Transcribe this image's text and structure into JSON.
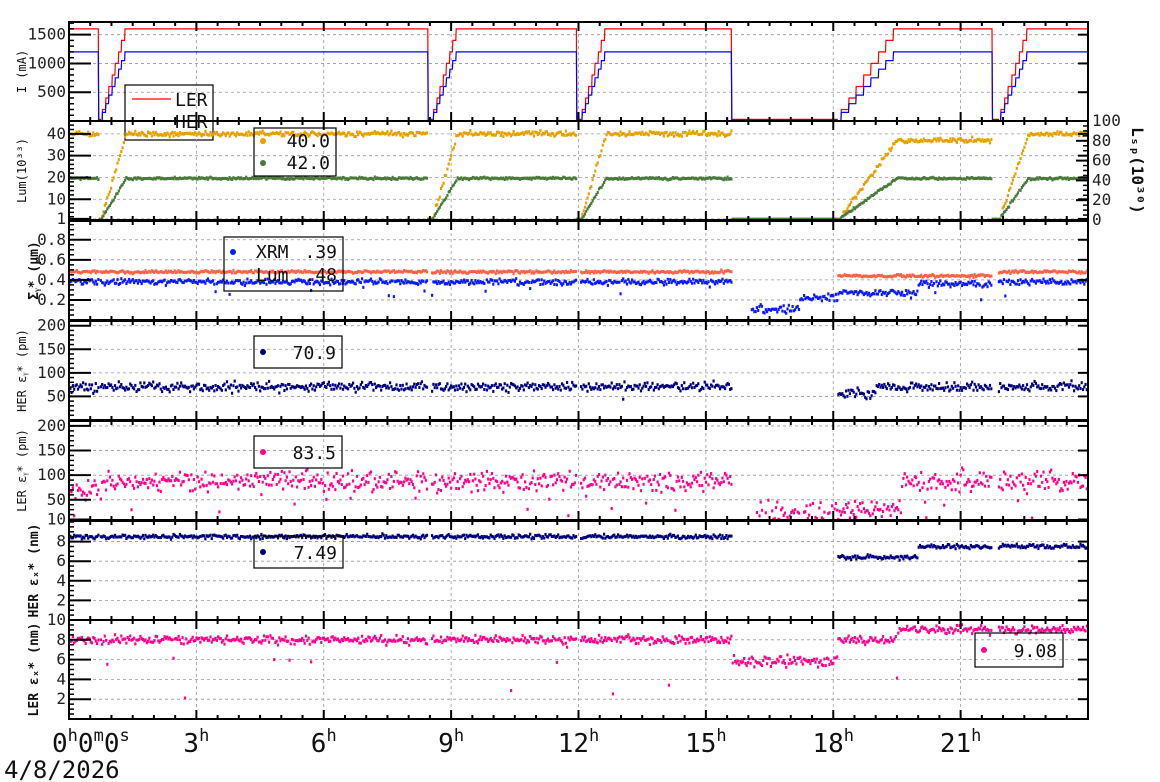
{
  "chart_data": {
    "type": "scatter",
    "title": "",
    "x_unit": "hours",
    "x_range": [
      0,
      24
    ],
    "x_ticks": [
      0,
      3,
      6,
      9,
      12,
      15,
      18,
      21
    ],
    "x_tick_labels": [
      "0h0m0s",
      "3h",
      "6h",
      "9h",
      "12h",
      "15h",
      "18h",
      "21h"
    ],
    "date_label": "4/8/2026",
    "grid": true,
    "beam_runs": [
      {
        "start": 0,
        "end": 0.7,
        "ramp": 0
      },
      {
        "start": 0.75,
        "end": 8.45,
        "ramp": 0.6
      },
      {
        "start": 8.55,
        "end": 11.95,
        "ramp": 0.6
      },
      {
        "start": 12.05,
        "end": 15.6,
        "ramp": 0.6
      },
      {
        "start": 18.1,
        "end": 21.75,
        "ramp": 1.4
      },
      {
        "start": 21.9,
        "end": 24,
        "ramp": 0.7
      }
    ],
    "panels": [
      {
        "ylabel": "I (mA)",
        "ylim": [
          0,
          1720
        ],
        "ticks": [
          500,
          1000,
          1500
        ],
        "tick_labels": [
          "500",
          "1000",
          "1500"
        ],
        "minor": 100,
        "legend": {
          "position": "upper-left",
          "entries": [
            {
              "label": "LER"
            },
            {
              "label": "HER"
            }
          ]
        },
        "series": [
          {
            "name": "LER",
            "kind": "line",
            "color": "#ff0000",
            "level": 1600,
            "noise": 0,
            "scale_with_fill": true,
            "off_value": 30
          },
          {
            "name": "HER",
            "kind": "line",
            "color": "#0000ff",
            "level": 1200,
            "noise": 0,
            "scale_with_fill": true,
            "off_value": 15
          }
        ]
      },
      {
        "ylabel": "Lum(10³³)",
        "ylim": [
          0.5,
          45.9
        ],
        "ticks": [
          1,
          10,
          20,
          30,
          40
        ],
        "tick_labels": [
          "1",
          "10",
          "20",
          "30",
          "40"
        ],
        "minor": 2,
        "right_axis": {
          "label": "Lₛₚ(10³⁰)",
          "ylim": [
            0,
            100
          ],
          "ticks": [
            0,
            20,
            40,
            60,
            80,
            100
          ],
          "tick_labels": [
            "0",
            "20",
            "40",
            "60",
            "80",
            "100"
          ]
        },
        "legend": {
          "position": "upper-center",
          "entries": [
            {
              "label": "40.0"
            },
            {
              "label": "42.0"
            }
          ]
        },
        "series": [
          {
            "name": "Lum",
            "kind": "scatter",
            "color": "#e8a000",
            "level": 40,
            "noise": 0.8,
            "scale_with_fill": true,
            "off_value": 1,
            "overrides": [
              {
                "from": 18.1,
                "to": 21.75,
                "level": 37
              }
            ]
          },
          {
            "name": "Lsp",
            "kind": "scatter",
            "color": "#4a7a3a",
            "level": 42,
            "noise": 0.8,
            "scale_with_fill": true,
            "off_value": 0.5,
            "right_axis": true
          }
        ]
      },
      {
        "ylabel": "Σᵧ* (μm)",
        "ylim": [
          0,
          0.987
        ],
        "ticks": [
          0.2,
          0.4,
          0.6,
          0.8
        ],
        "tick_labels": [
          "0.2",
          "0.4",
          "0.6",
          "0.8"
        ],
        "minor": 0.05,
        "legend": {
          "position": "upper-center",
          "entries": [
            {
              "label": "XRM",
              "value": ".39"
            },
            {
              "label": "Lum",
              "value": ".48"
            }
          ]
        },
        "series": [
          {
            "name": "Lum",
            "kind": "scatter",
            "color": "#ff6347",
            "level": 0.48,
            "noise": 0.01,
            "overrides": [
              {
                "from": 18.1,
                "to": 21.75,
                "level": 0.44
              }
            ]
          },
          {
            "name": "XRM",
            "kind": "scatter",
            "color": "#0a1aff",
            "level": 0.38,
            "noise": 0.02,
            "outlier_rate": 0.03,
            "outlier_low": 0.2,
            "overrides": [
              {
                "from": 18.1,
                "to": 20,
                "level": 0.27
              },
              {
                "from": 20,
                "to": 21.75,
                "level": 0.36
              }
            ],
            "off_segments": [
              {
                "from": 16.05,
                "to": 17.2,
                "level": 0.1
              },
              {
                "from": 17.2,
                "to": 18.1,
                "level": 0.22
              }
            ]
          }
        ]
      },
      {
        "ylabel": "HER εᵧ* (pm)",
        "ylim": [
          0,
          210
        ],
        "ticks": [
          50,
          100,
          150,
          200
        ],
        "tick_labels": [
          "50",
          "100",
          "150",
          "200"
        ],
        "minor": 10,
        "legend": {
          "position": "upper-center",
          "entries": [
            {
              "value": "70.9"
            }
          ]
        },
        "series": [
          {
            "name": "HER",
            "kind": "scatter",
            "color": "#000080",
            "level": 70,
            "noise": 7,
            "outlier_rate": 0.01,
            "outlier_low": 40,
            "overrides": [
              {
                "from": 18.1,
                "to": 19,
                "level": 58
              }
            ]
          }
        ]
      },
      {
        "ylabel": "LER εᵧ* (pm)",
        "ylim": [
          9,
          210
        ],
        "ticks": [
          10,
          50,
          100,
          150,
          200
        ],
        "tick_labels": [
          "10",
          "50",
          "100",
          "150",
          "200"
        ],
        "minor": 10,
        "legend": {
          "position": "upper-center",
          "entries": [
            {
              "value": "83.5"
            }
          ]
        },
        "series": [
          {
            "name": "LER",
            "kind": "scatter",
            "color": "#ff0090",
            "level": 88,
            "noise": 14,
            "outlier_rate": 0.05,
            "outlier_low": 12,
            "overrides": [
              {
                "from": 0,
                "to": 0.7,
                "level": 72
              },
              {
                "from": 18.1,
                "to": 19.6,
                "level": 30
              }
            ],
            "off_segments": [
              {
                "from": 16.05,
                "to": 18.1,
                "level": 16
              }
            ]
          }
        ]
      },
      {
        "ylabel": "HER εₓ* (nm)",
        "ylim": [
          0,
          10.1
        ],
        "ticks": [
          2,
          4,
          6,
          8
        ],
        "tick_labels": [
          "2",
          "4",
          "6",
          "8"
        ],
        "minor": 0.5,
        "legend": {
          "position": "upper-center",
          "entries": [
            {
              "value": "7.49"
            }
          ]
        },
        "series": [
          {
            "name": "HER",
            "kind": "scatter",
            "color": "#000080",
            "level": 8.5,
            "noise": 0.15,
            "overrides": [
              {
                "from": 15.6,
                "to": 16.05,
                "level": 7.6
              },
              {
                "from": 18.1,
                "to": 20,
                "level": 6.4
              },
              {
                "from": 20,
                "to": 21.75,
                "level": 7.5
              },
              {
                "from": 21.9,
                "to": 24,
                "level": 7.5
              }
            ]
          }
        ]
      },
      {
        "ylabel": "LER εₓ* (nm)",
        "ylim": [
          0,
          10
        ],
        "ticks": [
          2,
          4,
          6,
          8,
          10
        ],
        "tick_labels": [
          "2",
          "4",
          "6",
          "8",
          "10"
        ],
        "minor": 0.5,
        "legend": {
          "position": "right",
          "entries": [
            {
              "value": "9.08"
            }
          ]
        },
        "series": [
          {
            "name": "LER",
            "kind": "scatter",
            "color": "#ff0090",
            "level": 8,
            "noise": 0.3,
            "outlier_rate": 0.02,
            "outlier_low": 2,
            "overrides": [
              {
                "from": 19.5,
                "to": 24,
                "level": 9.0
              }
            ],
            "off_segments": [
              {
                "from": 15.6,
                "to": 18.1,
                "level": 5.8
              }
            ]
          }
        ]
      }
    ]
  }
}
